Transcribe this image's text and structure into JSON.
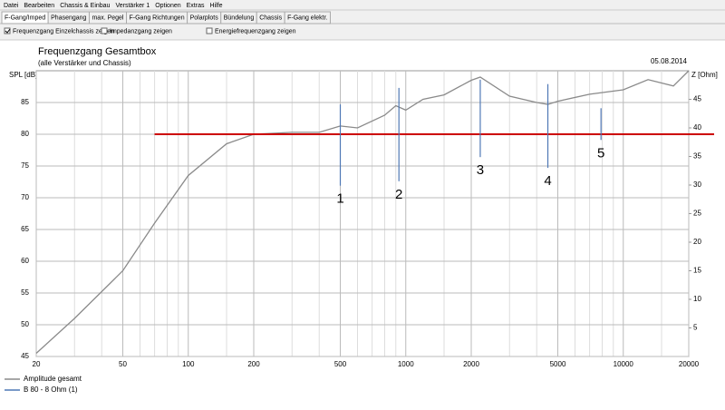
{
  "menu": [
    "Datei",
    "Bearbeiten",
    "Chassis & Einbau",
    "Verstärker 1",
    "Optionen",
    "Extras",
    "Hilfe"
  ],
  "tabs": [
    "F-Gang/Imped",
    "Phasengang",
    "max. Pegel",
    "F-Gang Richtungen",
    "Polarplots",
    "Bündelung",
    "Chassis",
    "F-Gang elektr."
  ],
  "active_tab": 0,
  "checkboxes": [
    {
      "label": "Frequenzgang Einzelchassis zeigen",
      "checked": true
    },
    {
      "label": "Impedanzgang zeigen",
      "checked": false
    },
    {
      "label": "Energiefrequenzgang zeigen",
      "checked": false
    }
  ],
  "chart_data": {
    "type": "line",
    "title": "Frequenzgang Gesamtbox",
    "subtitle": "(alle Verstärker und Chassis)",
    "date": "05.08.2014",
    "y_label": "SPL [dB]",
    "y2_label": "Z [Ohm]",
    "x_log": true,
    "grid": true,
    "xlim": [
      20,
      20000
    ],
    "xticks": [
      20,
      50,
      100,
      200,
      500,
      1000,
      2000,
      5000,
      10000,
      20000
    ],
    "xminor": [
      30,
      40,
      60,
      70,
      80,
      90,
      150,
      300,
      400,
      600,
      700,
      800,
      900,
      1500,
      3000,
      4000,
      6000,
      7000,
      8000,
      9000,
      15000
    ],
    "ylim": [
      45,
      90
    ],
    "yticks": [
      45,
      50,
      55,
      60,
      65,
      70,
      75,
      80,
      85
    ],
    "y2lim": [
      0,
      50
    ],
    "y2ticks": [
      5,
      10,
      15,
      20,
      25,
      30,
      35,
      40,
      45
    ],
    "x": [
      20,
      30,
      50,
      70,
      100,
      150,
      200,
      300,
      400,
      500,
      600,
      800,
      900,
      1000,
      1200,
      1500,
      2000,
      2200,
      3000,
      4000,
      4500,
      5000,
      7000,
      10000,
      13000,
      17000,
      20000
    ],
    "series": [
      {
        "name": "Amplitude gesamt",
        "color": "#8a8a8a",
        "values": [
          45.5,
          51,
          58.5,
          66,
          73.5,
          78.5,
          80,
          80.3,
          80.3,
          81.3,
          81,
          83,
          84.5,
          83.8,
          85.5,
          86.2,
          88.5,
          89,
          86,
          85,
          84.7,
          85.2,
          86.3,
          87,
          88.6,
          87.6,
          90
        ]
      }
    ],
    "markers": {
      "name": "B 80 - 8 Ohm (1)",
      "color": "#4f78b5",
      "items": [
        {
          "label": "1",
          "x": 500,
          "y": [
            71.9,
            84.7
          ]
        },
        {
          "label": "2",
          "x": 930,
          "y": [
            72.6,
            87.3
          ]
        },
        {
          "label": "3",
          "x": 2200,
          "y": [
            76.4,
            88.6
          ]
        },
        {
          "label": "4",
          "x": 4500,
          "y": [
            74.7,
            87.9
          ]
        },
        {
          "label": "5",
          "x": 7900,
          "y": [
            79.1,
            84.1
          ]
        }
      ]
    },
    "reference": {
      "color": "#cc0000",
      "y": 80,
      "x": [
        70,
        20000
      ]
    }
  }
}
